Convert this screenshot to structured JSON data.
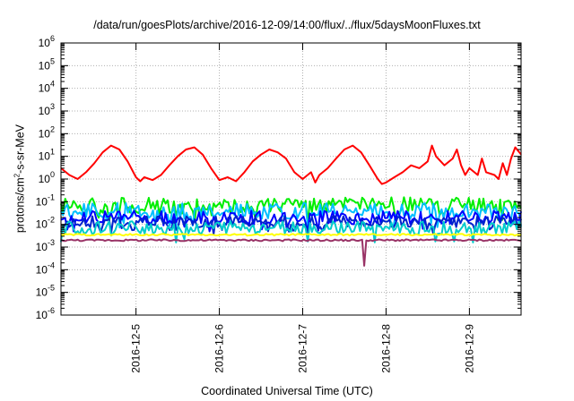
{
  "chart_data": {
    "type": "line",
    "title": "/data/run/goesPlots/archive/2016-12-09/14:00/flux/../flux/5daysMoonFluxes.txt",
    "xlabel": "Coordinated Universal Time (UTC)",
    "ylabel_main": "protons/cm",
    "ylabel_sup": "2",
    "ylabel_tail": "-s-sr-MeV",
    "yscale": "log",
    "ylim": [
      1e-06,
      1000000
    ],
    "ytick_exponents": [
      -6,
      -5,
      -4,
      -3,
      -2,
      -1,
      0,
      1,
      2,
      3,
      4,
      5,
      6
    ],
    "ytick_base": "10",
    "x_domain_days": [
      4.1,
      9.62
    ],
    "xticks": [
      {
        "label": "2016-12-5",
        "day": 5
      },
      {
        "label": "2016-12-6",
        "day": 6
      },
      {
        "label": "2016-12-7",
        "day": 7
      },
      {
        "label": "2016-12-8",
        "day": 8
      },
      {
        "label": "2016-12-9",
        "day": 9
      }
    ],
    "grid": true,
    "legend": "none",
    "series": [
      {
        "color": "#ff0000",
        "points": [
          [
            4.1,
            3.0
          ],
          [
            4.2,
            1.5
          ],
          [
            4.3,
            1.0
          ],
          [
            4.4,
            2.0
          ],
          [
            4.5,
            5.0
          ],
          [
            4.6,
            15
          ],
          [
            4.7,
            30
          ],
          [
            4.8,
            20
          ],
          [
            4.9,
            6
          ],
          [
            5.0,
            1.2
          ],
          [
            5.05,
            0.8
          ],
          [
            5.1,
            1.2
          ],
          [
            5.2,
            0.9
          ],
          [
            5.3,
            1.5
          ],
          [
            5.4,
            4
          ],
          [
            5.5,
            10
          ],
          [
            5.6,
            20
          ],
          [
            5.7,
            25
          ],
          [
            5.8,
            12
          ],
          [
            5.9,
            3
          ],
          [
            6.0,
            0.9
          ],
          [
            6.1,
            1.2
          ],
          [
            6.2,
            0.8
          ],
          [
            6.3,
            2
          ],
          [
            6.4,
            6
          ],
          [
            6.5,
            12
          ],
          [
            6.6,
            20
          ],
          [
            6.7,
            15
          ],
          [
            6.8,
            8
          ],
          [
            6.9,
            2
          ],
          [
            7.0,
            1.0
          ],
          [
            7.1,
            2.0
          ],
          [
            7.15,
            0.7
          ],
          [
            7.2,
            1.5
          ],
          [
            7.3,
            3
          ],
          [
            7.4,
            8
          ],
          [
            7.5,
            20
          ],
          [
            7.6,
            30
          ],
          [
            7.7,
            15
          ],
          [
            7.8,
            4
          ],
          [
            7.9,
            1.0
          ],
          [
            7.95,
            0.6
          ],
          [
            8.0,
            0.7
          ],
          [
            8.1,
            1.2
          ],
          [
            8.2,
            2.0
          ],
          [
            8.3,
            4.0
          ],
          [
            8.4,
            3.0
          ],
          [
            8.5,
            6.0
          ],
          [
            8.55,
            30
          ],
          [
            8.6,
            10
          ],
          [
            8.7,
            4
          ],
          [
            8.8,
            8
          ],
          [
            8.85,
            20
          ],
          [
            8.9,
            4
          ],
          [
            8.95,
            1.5
          ],
          [
            9.0,
            3
          ],
          [
            9.1,
            1.5
          ],
          [
            9.15,
            8
          ],
          [
            9.2,
            2
          ],
          [
            9.3,
            1.5
          ],
          [
            9.35,
            1.0
          ],
          [
            9.4,
            5
          ],
          [
            9.45,
            1.5
          ],
          [
            9.5,
            8
          ],
          [
            9.55,
            25
          ],
          [
            9.6,
            15
          ],
          [
            9.62,
            12
          ]
        ]
      },
      {
        "color": "#00ee00",
        "base": 0.07,
        "amp": 0.7
      },
      {
        "color": "#00bfff",
        "base": 0.04,
        "amp": 0.7
      },
      {
        "color": "#0000ff",
        "base": 0.02,
        "amp": 0.6
      },
      {
        "color": "#0022cc",
        "base": 0.013,
        "amp": 0.5
      },
      {
        "color": "#00cccc",
        "base": 0.007,
        "amp": 0.6
      },
      {
        "color": "#ffff00",
        "base": 0.0035,
        "amp": 0.08
      },
      {
        "color": "#993366",
        "base": 0.002,
        "amp": 0.08
      }
    ]
  }
}
